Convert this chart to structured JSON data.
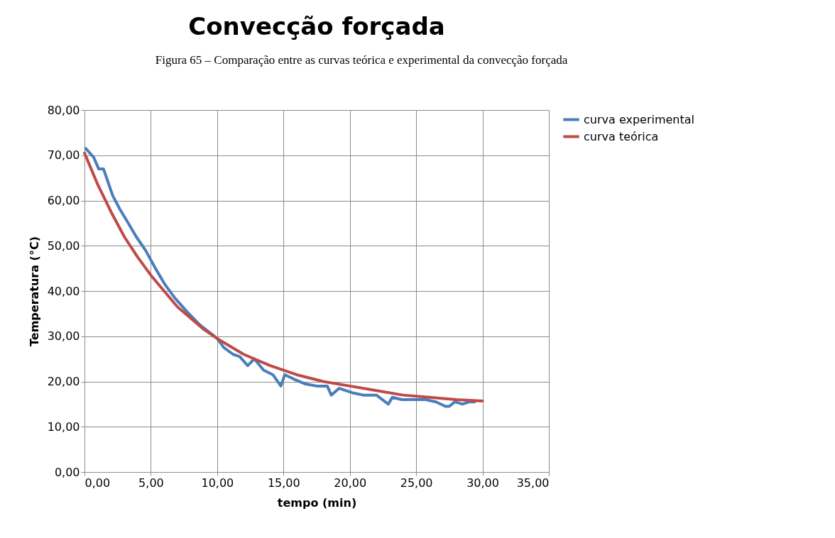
{
  "chart_data": {
    "type": "line",
    "title": "Convecção forçada",
    "xlabel": "tempo (min)",
    "ylabel": "Temperatura (°C)",
    "annotations": [
      "Figura 65 – Comparação entre as curvas teórica e experimental da convecção forçada"
    ],
    "xlim": [
      0,
      35
    ],
    "ylim": [
      0,
      80
    ],
    "xticks": [
      {
        "value": 0,
        "label": "0,00"
      },
      {
        "value": 5,
        "label": "5,00"
      },
      {
        "value": 10,
        "label": "10,00"
      },
      {
        "value": 15,
        "label": "15,00"
      },
      {
        "value": 20,
        "label": "20,00"
      },
      {
        "value": 25,
        "label": "25,00"
      },
      {
        "value": 30,
        "label": "30,00"
      },
      {
        "value": 35,
        "label": "35,00"
      }
    ],
    "yticks": [
      {
        "value": 0,
        "label": "0,00"
      },
      {
        "value": 10,
        "label": "10,00"
      },
      {
        "value": 20,
        "label": "20,00"
      },
      {
        "value": 30,
        "label": "30,00"
      },
      {
        "value": 40,
        "label": "40,00"
      },
      {
        "value": 50,
        "label": "50,00"
      },
      {
        "value": 60,
        "label": "60,00"
      },
      {
        "value": 70,
        "label": "70,00"
      },
      {
        "value": 80,
        "label": "80,00"
      }
    ],
    "grid": true,
    "legend": "right",
    "marker": "none",
    "line_style": "solid",
    "series": [
      {
        "name": "curva experimental",
        "color": "#4a7ebb",
        "x": [
          0.09,
          0.7,
          1.07,
          1.43,
          1.96,
          2.14,
          2.68,
          3.2,
          3.9,
          4.6,
          5.35,
          6.05,
          6.8,
          7.7,
          8.7,
          10.0,
          10.5,
          11.2,
          11.7,
          12.3,
          12.8,
          13.5,
          14.2,
          14.8,
          15.1,
          15.8,
          16.6,
          17.5,
          18.3,
          18.6,
          19.2,
          20.2,
          21.0,
          22.0,
          22.9,
          23.2,
          23.9,
          24.8,
          25.7,
          26.5,
          27.2,
          27.5,
          27.9,
          28.5,
          29.0,
          29.4
        ],
        "values": [
          71.5,
          69.5,
          67.0,
          67.0,
          62.5,
          61.0,
          58.0,
          55.5,
          52.0,
          49.0,
          45.0,
          41.5,
          38.5,
          35.5,
          32.5,
          29.5,
          27.5,
          26.0,
          25.5,
          23.5,
          25.0,
          22.5,
          21.5,
          19.0,
          21.5,
          20.5,
          19.5,
          19.0,
          19.0,
          17.0,
          18.5,
          17.5,
          17.0,
          17.0,
          15.0,
          16.5,
          16.0,
          16.0,
          16.0,
          15.5,
          14.5,
          14.5,
          15.5,
          15.0,
          15.5,
          15.5
        ]
      },
      {
        "name": "curva teórica",
        "color": "#be4b48",
        "x": [
          0,
          1,
          2,
          3,
          4,
          5,
          6,
          7,
          8,
          9,
          10,
          12,
          14,
          16,
          18,
          20,
          22,
          24,
          26,
          28,
          30
        ],
        "values": [
          70.5,
          63.5,
          57.5,
          52.0,
          47.5,
          43.5,
          40.0,
          36.5,
          34.0,
          31.5,
          29.5,
          26.0,
          23.5,
          21.5,
          20.0,
          19.0,
          18.0,
          17.0,
          16.5,
          16.0,
          15.7
        ]
      }
    ]
  }
}
